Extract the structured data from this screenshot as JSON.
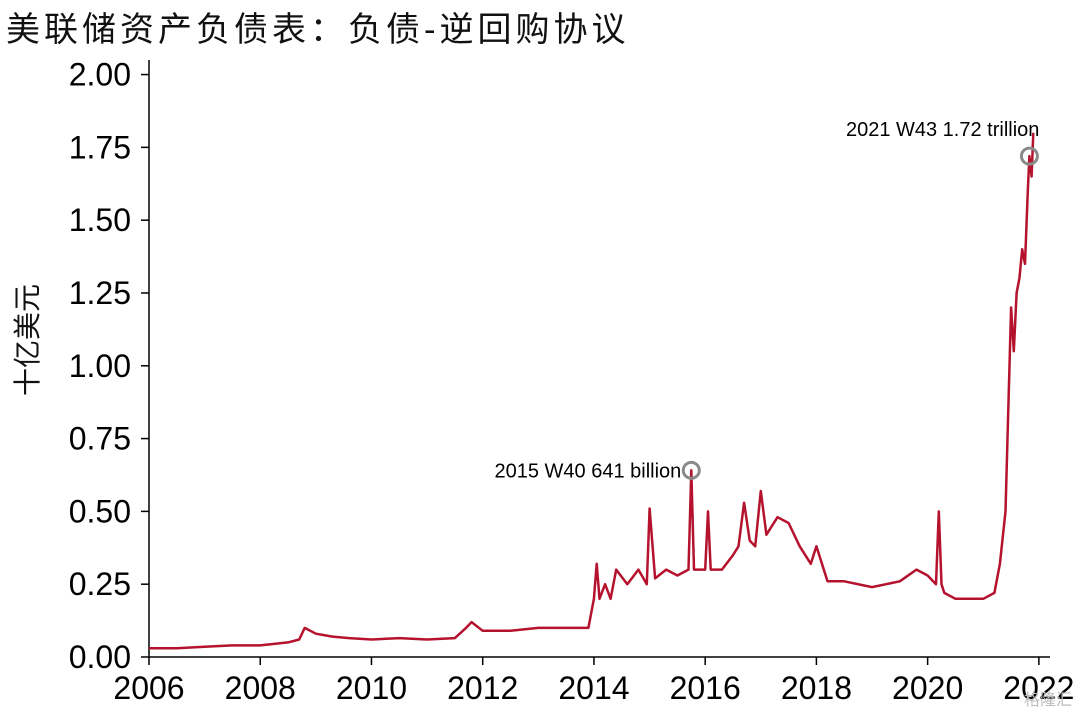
{
  "chart_data": {
    "type": "line",
    "title": "美联储资产负债表：负债-逆回购协议",
    "ylabel": "十亿美元",
    "xlabel": "",
    "xlim": [
      2006,
      2022.2
    ],
    "ylim": [
      0,
      2.05
    ],
    "xticks": [
      "2006",
      "2008",
      "2010",
      "2012",
      "2014",
      "2016",
      "2018",
      "2020",
      "2022"
    ],
    "xtick_values": [
      2006,
      2008,
      2010,
      2012,
      2014,
      2016,
      2018,
      2020,
      2022
    ],
    "yticks": [
      "0.00",
      "0.25",
      "0.50",
      "0.75",
      "1.00",
      "1.25",
      "1.50",
      "1.75",
      "2.00"
    ],
    "ytick_values": [
      0,
      0.25,
      0.5,
      0.75,
      1.0,
      1.25,
      1.5,
      1.75,
      2.0
    ],
    "grid": false,
    "series": [
      {
        "color": "#b5122e",
        "x": [
          2006.0,
          2006.5,
          2007.0,
          2007.5,
          2008.0,
          2008.5,
          2008.7,
          2008.8,
          2009.0,
          2009.3,
          2009.6,
          2010.0,
          2010.5,
          2011.0,
          2011.5,
          2011.7,
          2011.8,
          2012.0,
          2012.5,
          2013.0,
          2013.5,
          2013.9,
          2014.0,
          2014.05,
          2014.1,
          2014.2,
          2014.3,
          2014.4,
          2014.6,
          2014.8,
          2014.95,
          2015.0,
          2015.1,
          2015.3,
          2015.5,
          2015.7,
          2015.75,
          2015.8,
          2016.0,
          2016.05,
          2016.1,
          2016.3,
          2016.5,
          2016.6,
          2016.7,
          2016.8,
          2016.9,
          2017.0,
          2017.1,
          2017.3,
          2017.5,
          2017.7,
          2017.9,
          2018.0,
          2018.2,
          2018.5,
          2019.0,
          2019.5,
          2019.8,
          2020.0,
          2020.15,
          2020.2,
          2020.25,
          2020.3,
          2020.5,
          2020.8,
          2021.0,
          2021.2,
          2021.3,
          2021.4,
          2021.5,
          2021.55,
          2021.6,
          2021.65,
          2021.7,
          2021.75,
          2021.8,
          2021.83,
          2021.87,
          2021.9
        ],
        "y": [
          0.03,
          0.03,
          0.035,
          0.04,
          0.04,
          0.05,
          0.06,
          0.1,
          0.08,
          0.07,
          0.065,
          0.06,
          0.065,
          0.06,
          0.065,
          0.1,
          0.12,
          0.09,
          0.09,
          0.1,
          0.1,
          0.1,
          0.2,
          0.32,
          0.2,
          0.25,
          0.2,
          0.3,
          0.25,
          0.3,
          0.25,
          0.51,
          0.27,
          0.3,
          0.28,
          0.3,
          0.641,
          0.3,
          0.3,
          0.5,
          0.3,
          0.3,
          0.35,
          0.38,
          0.53,
          0.4,
          0.38,
          0.57,
          0.42,
          0.48,
          0.46,
          0.38,
          0.32,
          0.38,
          0.26,
          0.26,
          0.24,
          0.26,
          0.3,
          0.28,
          0.25,
          0.5,
          0.25,
          0.22,
          0.2,
          0.2,
          0.2,
          0.22,
          0.32,
          0.5,
          1.2,
          1.05,
          1.25,
          1.3,
          1.4,
          1.35,
          1.6,
          1.72,
          1.65,
          1.8
        ]
      }
    ],
    "annotations": [
      {
        "text": "2015 W40 641 billion",
        "x": 2015.75,
        "y": 0.641
      },
      {
        "text": "2021 W43 1.72 trillion",
        "x": 2021.83,
        "y": 1.72
      }
    ]
  },
  "watermark": "格隆汇"
}
